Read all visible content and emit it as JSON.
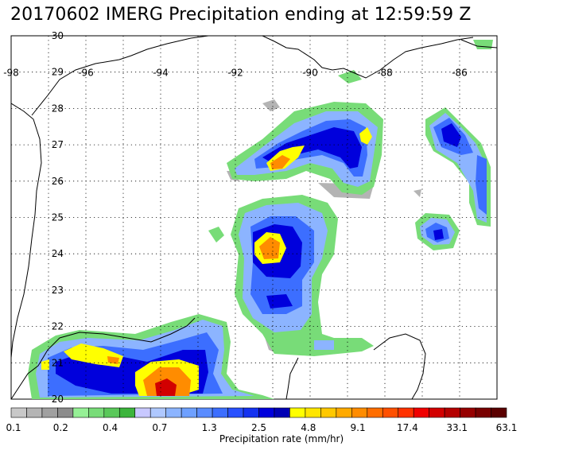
{
  "title": "20170602 IMERG Precipitation ending at 12:59:59 Z",
  "map": {
    "lat_ticks": [
      "20",
      "21",
      "22",
      "23",
      "24",
      "25",
      "26",
      "27",
      "28",
      "29",
      "30"
    ],
    "lon_ticks": [
      "-98",
      "-96",
      "-94",
      "-92",
      "-90",
      "-88",
      "-86"
    ],
    "lat_range": [
      20,
      30
    ],
    "lon_range": [
      -98,
      -85
    ],
    "gridlines": "dotted",
    "background_color": "#ffffff",
    "coastline_color": "#000000"
  },
  "colorbar": {
    "title": "Precipitation rate (mm/hr)",
    "labels": [
      "0.1",
      "0.2",
      "0.4",
      "0.7",
      "1.3",
      "2.5",
      "4.8",
      "9.1",
      "17.4",
      "33.1",
      "63.1"
    ],
    "colors": [
      "#c8c8c8",
      "#b4b4b4",
      "#a0a0a0",
      "#8c8c8c",
      "#96f096",
      "#78dc78",
      "#5ac85a",
      "#3cb43c",
      "#c8c8ff",
      "#afc8ff",
      "#8cb4ff",
      "#6ea0ff",
      "#5a8cff",
      "#3c6eff",
      "#2850ff",
      "#1432f0",
      "#0000dc",
      "#0000b4",
      "#ffff00",
      "#ffe600",
      "#ffc800",
      "#ffaa00",
      "#ff8c00",
      "#ff6e00",
      "#ff5000",
      "#ff3200",
      "#f00000",
      "#d20000",
      "#b40000",
      "#960000",
      "#780000",
      "#5a0000"
    ]
  }
}
